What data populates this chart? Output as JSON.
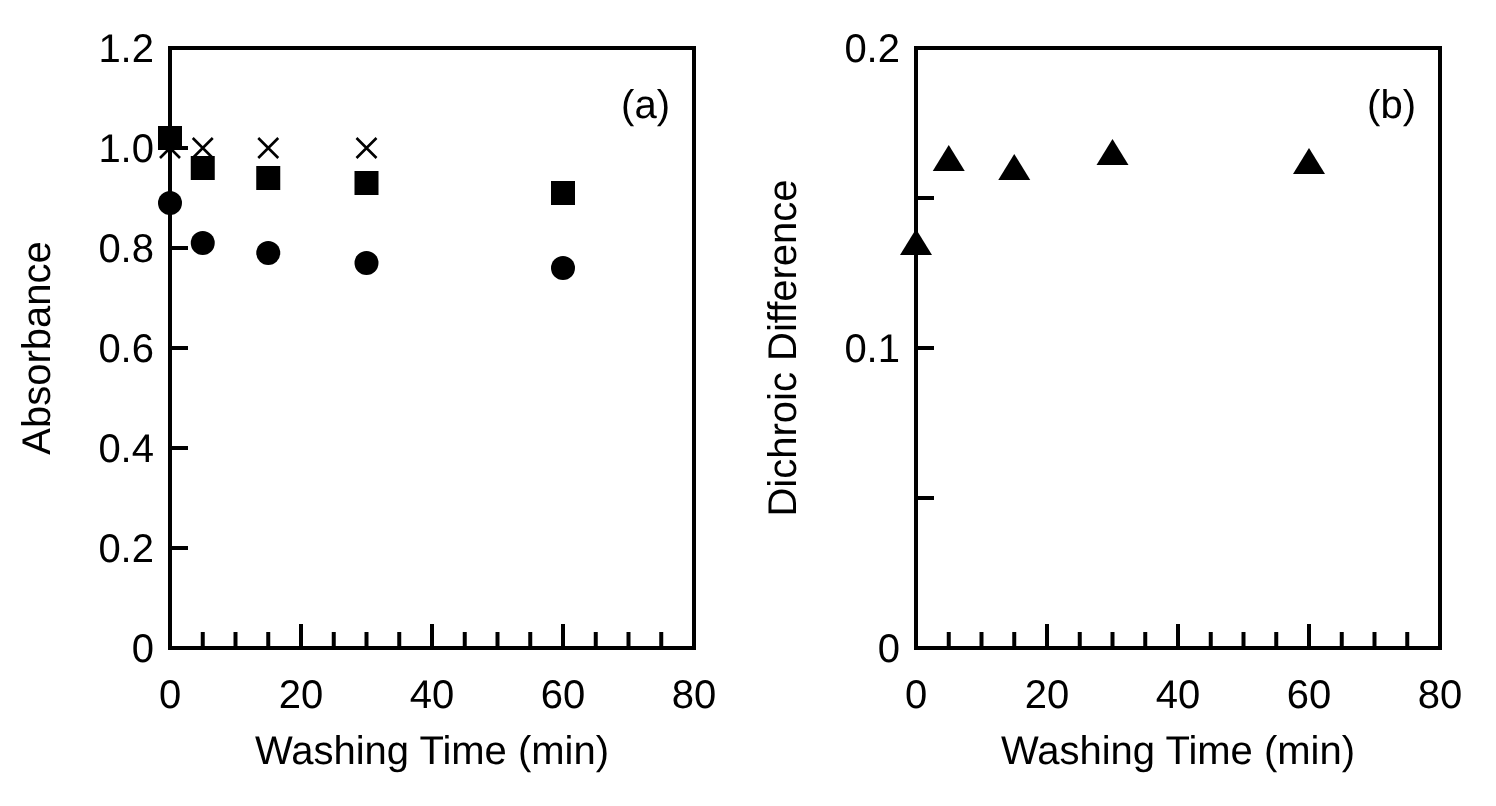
{
  "chart_data": [
    {
      "type": "scatter",
      "xlabel": "Washing Time (min)",
      "ylabel": "Absorbance",
      "annotations": [
        "(a)"
      ],
      "xlim": [
        0,
        80
      ],
      "xticks": [
        0,
        {
          "value": 5,
          "label": null
        },
        {
          "value": 10,
          "label": null
        },
        {
          "value": 15,
          "label": null
        },
        20,
        {
          "value": 25,
          "label": null
        },
        {
          "value": 30,
          "label": null
        },
        {
          "value": 35,
          "label": null
        },
        40,
        {
          "value": 45,
          "label": null
        },
        {
          "value": 50,
          "label": null
        },
        {
          "value": 55,
          "label": null
        },
        60,
        {
          "value": 65,
          "label": null
        },
        {
          "value": 70,
          "label": null
        },
        {
          "value": 75,
          "label": null
        },
        80
      ],
      "ylim": [
        0,
        1.2
      ],
      "yticks": [
        0,
        {
          "value": 0.2,
          "label": "0.2"
        },
        {
          "value": 0.4,
          "label": "0.4"
        },
        {
          "value": 0.6,
          "label": "0.6"
        },
        {
          "value": 0.8,
          "label": "0.8"
        },
        {
          "value": 1.0,
          "label": "1.0"
        },
        {
          "value": 1.2,
          "label": "1.2"
        }
      ],
      "grid": false,
      "series": [
        {
          "color": "#000000",
          "marker": "square",
          "x": [
            0,
            5,
            15,
            30,
            60
          ],
          "values": [
            1.02,
            0.96,
            0.94,
            0.93,
            0.91
          ]
        },
        {
          "color": "#000000",
          "marker": "circle",
          "x": [
            0,
            5,
            15,
            30,
            60
          ],
          "values": [
            0.89,
            0.81,
            0.79,
            0.77,
            0.76
          ]
        },
        {
          "color": "#000000",
          "marker": "cross",
          "x": [
            0,
            5,
            15,
            30
          ],
          "values": [
            1.0,
            1.0,
            1.0,
            1.0
          ]
        }
      ]
    },
    {
      "type": "scatter",
      "xlabel": "Washing Time (min)",
      "ylabel": "Dichroic Difference",
      "annotations": [
        "(b)"
      ],
      "xlim": [
        0,
        80
      ],
      "xticks": [
        0,
        {
          "value": 5,
          "label": null
        },
        {
          "value": 10,
          "label": null
        },
        {
          "value": 15,
          "label": null
        },
        20,
        {
          "value": 25,
          "label": null
        },
        {
          "value": 30,
          "label": null
        },
        {
          "value": 35,
          "label": null
        },
        40,
        {
          "value": 45,
          "label": null
        },
        {
          "value": 50,
          "label": null
        },
        {
          "value": 55,
          "label": null
        },
        60,
        {
          "value": 65,
          "label": null
        },
        {
          "value": 70,
          "label": null
        },
        {
          "value": 75,
          "label": null
        },
        80
      ],
      "ylim": [
        0,
        0.2
      ],
      "yticks": [
        0,
        {
          "value": 0.05,
          "label": null
        },
        0.1,
        {
          "value": 0.15,
          "label": null
        },
        0.2
      ],
      "grid": false,
      "series": [
        {
          "color": "#000000",
          "marker": "triangle",
          "x": [
            0,
            5,
            15,
            30,
            60
          ],
          "values": [
            0.135,
            0.163,
            0.16,
            0.165,
            0.162
          ]
        }
      ]
    }
  ]
}
